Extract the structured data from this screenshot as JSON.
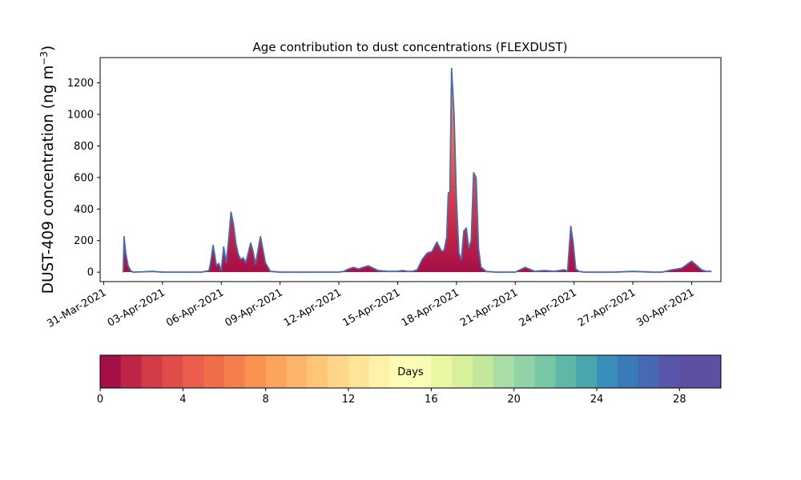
{
  "chart_data": {
    "type": "area",
    "title": "Age contribution to dust concentrations (FLEXDUST)",
    "ylabel_main": "DUST-409 concentration (ng m",
    "ylabel_sup": "−3",
    "ylabel_close": ")",
    "xlabel": "",
    "x_start": "2021-03-31",
    "x_end": "2021-05-01",
    "ylim": [
      -60,
      1360
    ],
    "yticks": [
      0,
      200,
      400,
      600,
      800,
      1000,
      1200
    ],
    "xtick_labels": [
      "31-Mar-2021",
      "03-Apr-2021",
      "06-Apr-2021",
      "09-Apr-2021",
      "12-Apr-2021",
      "15-Apr-2021",
      "18-Apr-2021",
      "21-Apr-2021",
      "24-Apr-2021",
      "27-Apr-2021",
      "30-Apr-2021"
    ],
    "series": [
      {
        "x": [
          "2021-04-01 00:00",
          "2021-04-01 01:00",
          "2021-04-01 03:00",
          "2021-04-01 06:00",
          "2021-04-01 09:00",
          "2021-04-01 12:00",
          "2021-04-02 00:00",
          "2021-04-02 12:00",
          "2021-04-03 00:00",
          "2021-04-04 00:00",
          "2021-04-05 00:00",
          "2021-04-05 09:00",
          "2021-04-05 11:00",
          "2021-04-05 14:00",
          "2021-04-05 16:00",
          "2021-04-05 18:00",
          "2021-04-05 21:00",
          "2021-04-06 00:00",
          "2021-04-06 03:00",
          "2021-04-06 06:00",
          "2021-04-06 09:00",
          "2021-04-06 12:00",
          "2021-04-06 15:00",
          "2021-04-06 18:00",
          "2021-04-06 21:00",
          "2021-04-07 00:00",
          "2021-04-07 03:00",
          "2021-04-07 06:00",
          "2021-04-07 09:00",
          "2021-04-07 12:00",
          "2021-04-07 15:00",
          "2021-04-07 18:00",
          "2021-04-07 21:00",
          "2021-04-08 00:00",
          "2021-04-08 06:00",
          "2021-04-08 12:00",
          "2021-04-09 00:00",
          "2021-04-10 00:00",
          "2021-04-11 00:00",
          "2021-04-12 00:00",
          "2021-04-12 06:00",
          "2021-04-12 12:00",
          "2021-04-12 18:00",
          "2021-04-13 00:00",
          "2021-04-13 12:00",
          "2021-04-14 00:00",
          "2021-04-14 12:00",
          "2021-04-15 00:00",
          "2021-04-15 06:00",
          "2021-04-15 12:00",
          "2021-04-15 18:00",
          "2021-04-16 00:00",
          "2021-04-16 06:00",
          "2021-04-16 12:00",
          "2021-04-16 18:00",
          "2021-04-17 00:00",
          "2021-04-17 06:00",
          "2021-04-17 09:00",
          "2021-04-17 12:00",
          "2021-04-17 14:00",
          "2021-04-17 16:00",
          "2021-04-17 18:00",
          "2021-04-17 21:00",
          "2021-04-18 00:00",
          "2021-04-18 03:00",
          "2021-04-18 06:00",
          "2021-04-18 09:00",
          "2021-04-18 12:00",
          "2021-04-18 15:00",
          "2021-04-18 18:00",
          "2021-04-18 21:00",
          "2021-04-19 00:00",
          "2021-04-19 03:00",
          "2021-04-19 06:00",
          "2021-04-19 09:00",
          "2021-04-19 12:00",
          "2021-04-20 00:00",
          "2021-04-20 12:00",
          "2021-04-21 00:00",
          "2021-04-21 12:00",
          "2021-04-22 00:00",
          "2021-04-22 12:00",
          "2021-04-23 00:00",
          "2021-04-23 12:00",
          "2021-04-23 16:00",
          "2021-04-23 20:00",
          "2021-04-23 23:00",
          "2021-04-24 02:00",
          "2021-04-24 06:00",
          "2021-04-24 12:00",
          "2021-04-25 00:00",
          "2021-04-26 00:00",
          "2021-04-27 00:00",
          "2021-04-28 00:00",
          "2021-04-28 12:00",
          "2021-04-29 00:00",
          "2021-04-29 12:00",
          "2021-04-30 00:00",
          "2021-04-30 12:00",
          "2021-04-30 18:00",
          "2021-05-01 00:00"
        ],
        "y": [
          0,
          225,
          120,
          40,
          10,
          0,
          2,
          5,
          0,
          0,
          0,
          10,
          60,
          170,
          110,
          40,
          55,
          10,
          160,
          60,
          200,
          380,
          300,
          180,
          110,
          80,
          90,
          60,
          120,
          185,
          130,
          50,
          140,
          225,
          60,
          5,
          0,
          0,
          0,
          0,
          5,
          20,
          30,
          20,
          40,
          10,
          5,
          5,
          10,
          5,
          5,
          15,
          80,
          120,
          130,
          190,
          130,
          140,
          220,
          500,
          510,
          1290,
          1000,
          450,
          120,
          80,
          260,
          280,
          150,
          200,
          630,
          600,
          150,
          30,
          20,
          5,
          0,
          0,
          0,
          30,
          5,
          10,
          5,
          15,
          5,
          290,
          180,
          20,
          5,
          0,
          0,
          0,
          5,
          0,
          0,
          15,
          25,
          70,
          15,
          5,
          5
        ]
      }
    ],
    "age_colorbar": {
      "label": "Days",
      "min": 0,
      "max": 30,
      "ticks": [
        0,
        4,
        8,
        12,
        16,
        20,
        24,
        28
      ],
      "colors": [
        "#a50f47",
        "#bf2546",
        "#d33b49",
        "#e24c4a",
        "#ea5d4b",
        "#f06d4a",
        "#f57f4c",
        "#f9924f",
        "#fca35c",
        "#fdb669",
        "#fdc677",
        "#fed687",
        "#fee497",
        "#fff1a7",
        "#fffbb5",
        "#f9fcb4",
        "#ebf7a2",
        "#d9f09a",
        "#c3e89d",
        "#aadda3",
        "#91d2a6",
        "#77c8a4",
        "#5fb7a8",
        "#4aa5af",
        "#3a8fba",
        "#3b7ab8",
        "#4769b4",
        "#5756aa",
        "#5e4fa2",
        "#5e4fa2"
      ]
    },
    "envelope_color": "#4a6bae",
    "grid": false,
    "legend": "none"
  }
}
